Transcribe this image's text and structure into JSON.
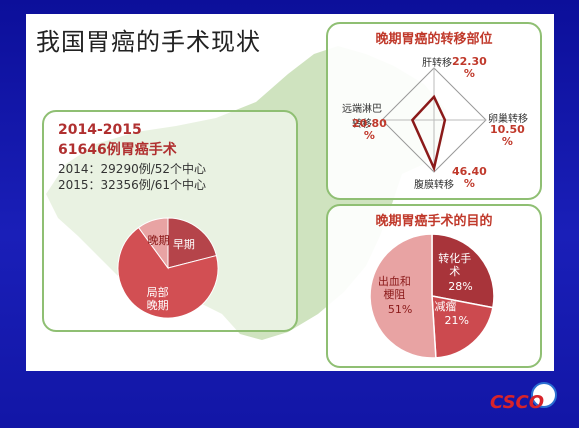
{
  "slide": {
    "title": "我国胃癌的手术现状",
    "colors": {
      "background": "#1216a6",
      "map": "#cfe3bf",
      "accent": "#c0392b",
      "panel_border": "#8fbf73"
    }
  },
  "volume_panel": {
    "period": "2014-2015",
    "total": "61646例胃癌手术",
    "year_2014": "2014：29290例/52个中心",
    "year_2015": "2015：32356例/61个中心"
  },
  "logo": {
    "text": "CSCO"
  },
  "chart_data": [
    {
      "type": "pie",
      "title": "",
      "slices": [
        {
          "label": "早期",
          "value": 21,
          "color": "#b5444a"
        },
        {
          "label": "局部晚期",
          "value": 69,
          "color": "#d24f53"
        },
        {
          "label": "晚期",
          "value": 10,
          "color": "#e8a3a3"
        }
      ]
    },
    {
      "type": "radar",
      "title": "晚期胃癌的转移部位",
      "axes": [
        {
          "label": "肝转移",
          "value": 22.3,
          "value_text": "22.30\n%"
        },
        {
          "label": "卵巢转移",
          "value": 10.5,
          "value_text": "10.50\n%"
        },
        {
          "label": "腹膜转移",
          "value": 46.4,
          "value_text": "46.40\n%"
        },
        {
          "label": "远端淋巴转移",
          "value": 20.8,
          "value_text": "20.80\n%"
        }
      ],
      "max": 50,
      "colors": {
        "line": "#8b1a1a"
      }
    },
    {
      "type": "pie",
      "title": "晚期胃癌手术的目的",
      "slices": [
        {
          "label": "转化手术",
          "value": 28,
          "value_text": "28%",
          "color": "#a8343a"
        },
        {
          "label": "减瘤",
          "value": 21,
          "value_text": "21%",
          "color": "#cc4a4f"
        },
        {
          "label": "出血和梗阻",
          "value": 51,
          "value_text": "51%",
          "color": "#e8a3a3"
        }
      ]
    }
  ]
}
